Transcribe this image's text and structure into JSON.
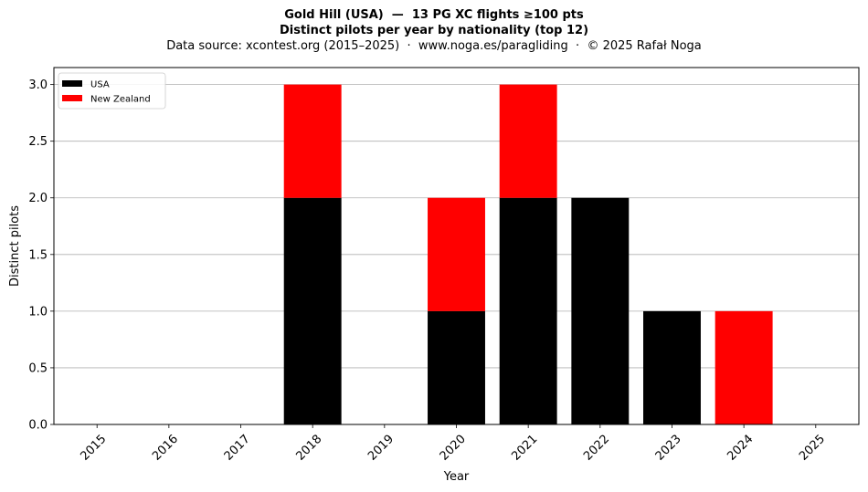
{
  "chart_data": {
    "type": "bar",
    "stacked": true,
    "title": "Gold Hill (USA)  —  13 PG XC flights ≥100 pts",
    "title_line2": "Distinct pilots per year by nationality (top 12)",
    "subtitle": "Data source: xcontest.org (2015–2025)  ·  www.noga.es/paragliding  ·  © 2025 Rafał Noga",
    "xlabel": "Year",
    "ylabel": "Distinct pilots",
    "categories": [
      "2015",
      "2016",
      "2017",
      "2018",
      "2019",
      "2020",
      "2021",
      "2022",
      "2023",
      "2024",
      "2025"
    ],
    "series": [
      {
        "name": "USA",
        "color": "#000000",
        "values": [
          0,
          0,
          0,
          2,
          0,
          1,
          2,
          2,
          1,
          0,
          0
        ]
      },
      {
        "name": "New Zealand",
        "color": "#ff0000",
        "values": [
          0,
          0,
          0,
          1,
          0,
          1,
          1,
          0,
          0,
          1,
          0
        ]
      }
    ],
    "ylim": [
      0,
      3.15
    ],
    "yticks": [
      0.0,
      0.5,
      1.0,
      1.5,
      2.0,
      2.5,
      3.0
    ],
    "ytick_labels": [
      "0.0",
      "0.5",
      "1.0",
      "1.5",
      "2.0",
      "2.5",
      "3.0"
    ],
    "grid": "y",
    "legend_position": "upper-left"
  }
}
